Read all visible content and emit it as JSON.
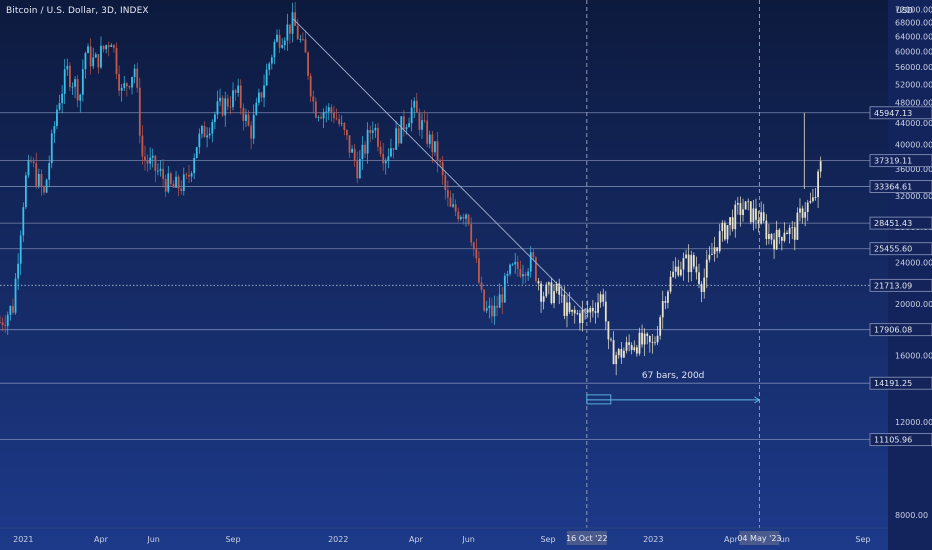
{
  "header": {
    "symbol_title": "Bitcoin / U.S. Dollar, 3D, INDEX"
  },
  "axis": {
    "currency_label": "USD",
    "y_ticks": [
      "72000.00",
      "68000.00",
      "64000.00",
      "60000.00",
      "56000.00",
      "52000.00",
      "48000.00",
      "44000.00",
      "40000.00",
      "36000.00",
      "32000.00",
      "28000.00",
      "24000.00",
      "20000.00",
      "16000.00",
      "12000.00",
      "8000.00"
    ],
    "x_ticks": [
      "2021",
      "Apr",
      "Jun",
      "Sep",
      "2022",
      "Apr",
      "Jun",
      "Sep",
      "2023",
      "Apr",
      "Jun",
      "Sep"
    ]
  },
  "markers": {
    "date_1": "16 Oct '22",
    "date_2": "04 May '23"
  },
  "annotation": {
    "range_label": "67 bars, 200d"
  },
  "colors": {
    "background_top": "#0d1a3e",
    "background_bottom": "#1d3a8a",
    "candle_up": "#39c0ea",
    "candle_down": "#c2594a",
    "candle_neutral": "#e8e3c8",
    "level_line": "#8b97bd",
    "trendline": "#a9b2cf",
    "text": "#dfe4f0"
  },
  "chart_data": {
    "type": "line",
    "title": "Bitcoin / U.S. Dollar, 3D, INDEX",
    "ylabel": "USD",
    "y_scale": "log",
    "ylim": [
      7500,
      75000
    ],
    "xlim": [
      "2020-12-05",
      "2023-09-30"
    ],
    "price_levels": [
      {
        "value": 45947.13,
        "label": "45947.13"
      },
      {
        "value": 37319.11,
        "label": "37319.11"
      },
      {
        "value": 33364.61,
        "label": "33364.61"
      },
      {
        "value": 28451.43,
        "label": "28451.43"
      },
      {
        "value": 25455.6,
        "label": "25455.60"
      },
      {
        "value": 21713.09,
        "label": "21713.09",
        "style": "dotted"
      },
      {
        "value": 17906.08,
        "label": "17906.08"
      },
      {
        "value": 14191.25,
        "label": "14191.25"
      },
      {
        "value": 11105.96,
        "label": "11105.96"
      }
    ],
    "trendline": {
      "from": {
        "x": "2021-11-10",
        "y": 69000
      },
      "to": {
        "x": "2022-10-16",
        "y": 19200
      }
    },
    "vertical_markers": [
      {
        "x": "2022-10-16",
        "label": "16 Oct '22"
      },
      {
        "x": "2023-05-04",
        "label": "04 May '23"
      }
    ],
    "range_measure": {
      "x_start": "2022-10-16",
      "x_end": "2023-05-04",
      "y": 13200,
      "label": "67 bars, 200d"
    },
    "series": [
      {
        "values_x": [
          "2020-12-05",
          "2020-12-20",
          "2021-01-03",
          "2021-01-10",
          "2021-01-25",
          "2021-02-10",
          "2021-02-21",
          "2021-03-08",
          "2021-03-13",
          "2021-03-25",
          "2021-04-13",
          "2021-04-25",
          "2021-05-10",
          "2021-05-19",
          "2021-06-10",
          "2021-06-22",
          "2021-07-10",
          "2021-07-20",
          "2021-08-14",
          "2021-09-06",
          "2021-09-21",
          "2021-10-20",
          "2021-11-10",
          "2021-11-25",
          "2021-12-04",
          "2021-12-27",
          "2022-01-10",
          "2022-01-24",
          "2022-02-10",
          "2022-02-24",
          "2022-03-28",
          "2022-04-26",
          "2022-05-10",
          "2022-05-31",
          "2022-06-18",
          "2022-06-30",
          "2022-07-20",
          "2022-08-14",
          "2022-08-25",
          "2022-09-13",
          "2022-09-25",
          "2022-10-16",
          "2022-11-05",
          "2022-11-09",
          "2022-11-21",
          "2022-12-10",
          "2023-01-01",
          "2023-01-14",
          "2023-01-30",
          "2023-02-15",
          "2023-02-27",
          "2023-03-14",
          "2023-03-30",
          "2023-04-14",
          "2023-05-04",
          "2023-05-15",
          "2023-05-25",
          "2023-06-02",
          "2023-06-12",
          "2023-06-24",
          "2023-07-06",
          "2023-07-15"
        ],
        "values_y": [
          18500,
          19800,
          34000,
          37000,
          32000,
          48000,
          55000,
          50000,
          60000,
          57000,
          64000,
          50000,
          56000,
          38000,
          35000,
          33000,
          34000,
          40000,
          46500,
          50000,
          42000,
          63000,
          68000,
          58000,
          47000,
          46000,
          41000,
          36000,
          44000,
          38000,
          47000,
          38000,
          30000,
          30000,
          19500,
          19200,
          23000,
          24200,
          21000,
          21000,
          19000,
          19200,
          21000,
          16500,
          16000,
          17000,
          16600,
          21000,
          23800,
          24000,
          22000,
          26000,
          28500,
          30500,
          29000,
          27000,
          26500,
          28000,
          27000,
          30500,
          31000,
          37000
        ],
        "name": ""
      }
    ],
    "ranges": {
      "last_visible_high": 45947.13,
      "last_visible_close": 37319.11
    }
  }
}
